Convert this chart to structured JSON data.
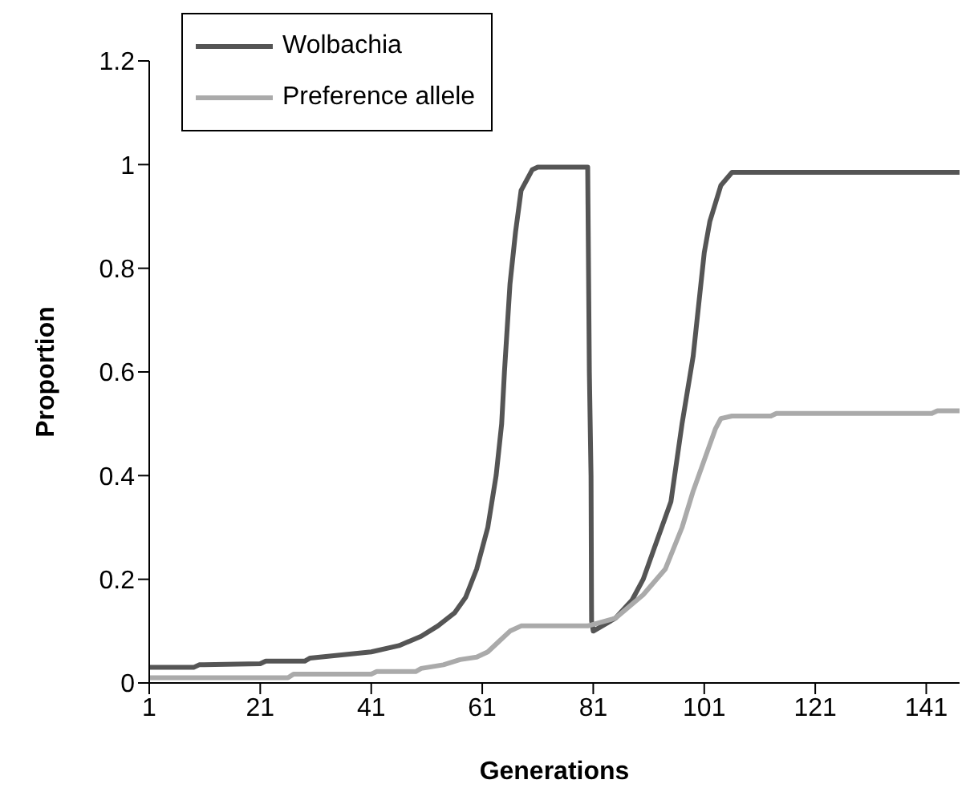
{
  "chart_data": {
    "type": "line",
    "xlabel": "Generations",
    "ylabel": "Proportion",
    "xlim": [
      1,
      147
    ],
    "xticks": [
      1,
      21,
      41,
      61,
      81,
      101,
      121,
      141
    ],
    "ylim": [
      0,
      1.2
    ],
    "yticks": [
      0,
      0.2,
      0.4,
      0.6,
      0.8,
      1,
      1.2
    ],
    "grid": false,
    "legend": "top left",
    "marker": "none",
    "line_style": "solid",
    "series": [
      {
        "name": "Wolbachia",
        "color": "#555555",
        "x": [
          1,
          9,
          10,
          21,
          22,
          29,
          30,
          41,
          46,
          50,
          53,
          56,
          58,
          60,
          62,
          63.5,
          64.5,
          65,
          66,
          67,
          68,
          70,
          71,
          80,
          80.3,
          80.6,
          80.7,
          81,
          85,
          88,
          90,
          92,
          95,
          97,
          99,
          100,
          101,
          102,
          104,
          106,
          147
        ],
        "values": [
          0.03,
          0.03,
          0.035,
          0.037,
          0.042,
          0.042,
          0.048,
          0.06,
          0.072,
          0.09,
          0.11,
          0.135,
          0.165,
          0.22,
          0.3,
          0.4,
          0.5,
          0.6,
          0.77,
          0.87,
          0.95,
          0.99,
          0.995,
          0.995,
          0.6,
          0.4,
          0.12,
          0.1,
          0.125,
          0.16,
          0.2,
          0.26,
          0.35,
          0.5,
          0.63,
          0.73,
          0.83,
          0.89,
          0.96,
          0.985,
          0.985
        ]
      },
      {
        "name": "Preference allele",
        "color": "#aaaaaa",
        "x": [
          1,
          26,
          27,
          41,
          42,
          49,
          50,
          54,
          57,
          60,
          62,
          64,
          66,
          68,
          80,
          85,
          90,
          94,
          97,
          99,
          101,
          103,
          104,
          106,
          113,
          114,
          142,
          143,
          147
        ],
        "values": [
          0.01,
          0.01,
          0.017,
          0.017,
          0.022,
          0.022,
          0.028,
          0.035,
          0.045,
          0.05,
          0.06,
          0.08,
          0.1,
          0.11,
          0.11,
          0.125,
          0.17,
          0.22,
          0.3,
          0.37,
          0.43,
          0.49,
          0.51,
          0.515,
          0.515,
          0.52,
          0.52,
          0.525,
          0.525
        ]
      }
    ]
  }
}
